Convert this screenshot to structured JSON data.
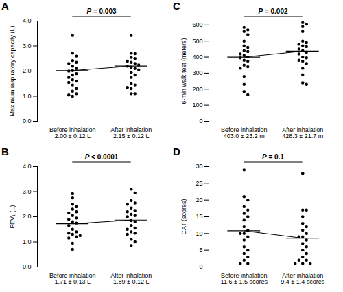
{
  "chart_data": [
    {
      "type": "scatter",
      "panel": "A",
      "y_label": "Maximum inspiratory capacity (L)",
      "categories": [
        "Before inhalation",
        "After inhalation"
      ],
      "category_notes": [
        "2.00 ± 0.12 L",
        "2.15 ± 0.12 L"
      ],
      "p_value": "P = 0.003",
      "values": [
        [
          3.42,
          2.72,
          2.6,
          2.42,
          2.35,
          2.3,
          2.2,
          2.1,
          2.02,
          2.0,
          1.9,
          1.85,
          1.75,
          1.65,
          1.6,
          1.55,
          1.45,
          1.3,
          1.2,
          1.1,
          1.05,
          1.0
        ],
        [
          3.42,
          2.72,
          2.7,
          2.55,
          2.5,
          2.4,
          2.35,
          2.3,
          2.25,
          2.2,
          2.15,
          2.1,
          2.05,
          1.95,
          1.85,
          1.75,
          1.5,
          1.45,
          1.35,
          1.3,
          1.1,
          1.1
        ]
      ],
      "line_values": [
        2.02,
        2.2
      ],
      "color": "#000000",
      "ylim": [
        0,
        4
      ],
      "yticks": [
        0,
        1,
        2,
        3,
        4
      ]
    },
    {
      "type": "scatter",
      "panel": "B",
      "y_label": "FEV₁ (L)",
      "categories": [
        "Before inhalation",
        "After inhalation"
      ],
      "category_notes": [
        "1.71 ± 0.13 L",
        "1.89 ± 0.12 L"
      ],
      "p_value": "P < 0.0001",
      "values": [
        [
          2.92,
          2.75,
          2.5,
          2.4,
          2.3,
          2.2,
          2.15,
          2.05,
          1.95,
          1.9,
          1.8,
          1.75,
          1.65,
          1.5,
          1.4,
          1.35,
          1.3,
          1.25,
          1.2,
          1.15,
          0.95,
          0.7
        ],
        [
          3.1,
          2.95,
          2.65,
          2.55,
          2.5,
          2.35,
          2.25,
          2.2,
          2.1,
          2.05,
          2.0,
          1.85,
          1.8,
          1.65,
          1.55,
          1.5,
          1.4,
          1.35,
          1.3,
          1.1,
          1.0,
          0.85
        ]
      ],
      "line_values": [
        1.72,
        1.87
      ],
      "color": "#000000",
      "ylim": [
        0,
        4
      ],
      "yticks": [
        0,
        1,
        2,
        3,
        4
      ]
    },
    {
      "type": "scatter",
      "panel": "C",
      "y_label": "6-min walk test (meters)",
      "categories": [
        "Before inhalation",
        "After inhalation"
      ],
      "category_notes": [
        "403.0 ± 23.2 m",
        "428.3 ± 21.7 m"
      ],
      "p_value": "P = 0.002",
      "values": [
        [
          585,
          570,
          560,
          540,
          500,
          470,
          460,
          440,
          435,
          420,
          410,
          400,
          395,
          380,
          375,
          350,
          340,
          330,
          280,
          230,
          185,
          165
        ],
        [
          615,
          605,
          590,
          560,
          500,
          490,
          480,
          470,
          465,
          450,
          440,
          430,
          420,
          400,
          395,
          380,
          375,
          360,
          330,
          290,
          240,
          230
        ]
      ],
      "line_values": [
        400,
        437
      ],
      "color": "#000000",
      "ylim": [
        0,
        625
      ],
      "yticks": [
        0,
        100,
        200,
        300,
        400,
        500,
        600
      ]
    },
    {
      "type": "scatter",
      "panel": "D",
      "y_label": "CAT (scores)",
      "categories": [
        "Before inhalation",
        "After inhalation"
      ],
      "category_notes": [
        "11.6 ± 1.5 scores",
        "9.4 ± 1.4 scores"
      ],
      "p_value": "P = 0.1",
      "values": [
        [
          29,
          21,
          20,
          18,
          17,
          16,
          15,
          14,
          12,
          11,
          10,
          10,
          9,
          8,
          6,
          5,
          4,
          3,
          2,
          1,
          1
        ],
        [
          28,
          17,
          17,
          15,
          13,
          12,
          11,
          10,
          9,
          9,
          8,
          7,
          6,
          5,
          4,
          3,
          2,
          2,
          1,
          1,
          1
        ]
      ],
      "line_values": [
        10.8,
        8.6
      ],
      "color": "#000000",
      "ylim": [
        0,
        30
      ],
      "yticks": [
        0,
        5,
        10,
        15,
        20,
        25,
        30
      ]
    }
  ]
}
